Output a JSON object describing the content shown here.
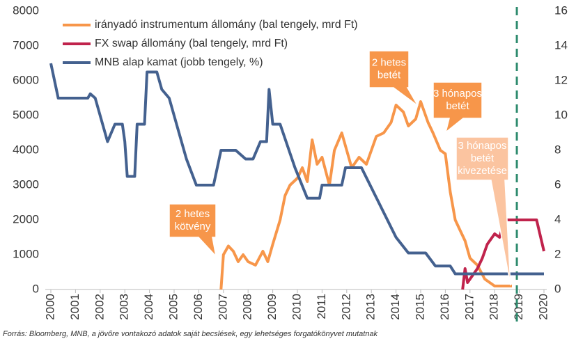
{
  "chart_data": {
    "type": "line",
    "xlim": [
      2000,
      2020
    ],
    "xticks": [
      2000,
      2001,
      2002,
      2003,
      2004,
      2005,
      2006,
      2007,
      2008,
      2009,
      2010,
      2011,
      2012,
      2013,
      2014,
      2015,
      2016,
      2017,
      2018,
      2019,
      2020
    ],
    "ylim": [
      0,
      8000
    ],
    "yticks": [
      0,
      1000,
      2000,
      3000,
      4000,
      5000,
      6000,
      7000,
      8000
    ],
    "y2lim": [
      0,
      16
    ],
    "y2ticks": [
      0,
      2,
      4,
      6,
      8,
      10,
      12,
      14,
      16
    ],
    "legend": "upper left",
    "vline": 2018.9,
    "vline_color": "#2e8b6e",
    "series": [
      {
        "name": "irányadó instrumentum állomány (bal tengely, mrd Ft)",
        "color": "#f7964a",
        "x": [
          2006.9,
          2007.0,
          2007.2,
          2007.4,
          2007.6,
          2007.8,
          2008.0,
          2008.3,
          2008.6,
          2008.8,
          2009.0,
          2009.3,
          2009.5,
          2009.7,
          2010.0,
          2010.2,
          2010.4,
          2010.6,
          2010.8,
          2011.0,
          2011.3,
          2011.5,
          2011.8,
          2012.0,
          2012.2,
          2012.5,
          2012.8,
          2013.0,
          2013.2,
          2013.5,
          2013.8,
          2014.0,
          2014.3,
          2014.5,
          2014.8,
          2015.0,
          2015.3,
          2015.5,
          2015.8,
          2016.0,
          2016.2,
          2016.4,
          2016.6,
          2016.8,
          2017.0,
          2017.3,
          2017.6,
          2018.0,
          2018.7
        ],
        "values": [
          0,
          1000,
          1250,
          1100,
          800,
          1000,
          800,
          700,
          1100,
          800,
          1300,
          2000,
          2700,
          3000,
          3200,
          3500,
          3100,
          4300,
          3600,
          3800,
          3000,
          4000,
          4500,
          4000,
          3500,
          3800,
          3600,
          4000,
          4400,
          4500,
          4800,
          5300,
          5100,
          4700,
          4900,
          5400,
          4800,
          4500,
          4000,
          3900,
          2800,
          2000,
          1700,
          1400,
          900,
          700,
          300,
          100,
          100
        ]
      },
      {
        "name": "FX swap állomány (bal tengely, mrd Ft)",
        "color": "#c0234c",
        "x": [
          2016.7,
          2016.8,
          2016.9,
          2017.3,
          2017.5,
          2017.7,
          2018.0,
          2018.2,
          2018.4,
          2019.7,
          2020.0
        ],
        "values": [
          0,
          600,
          200,
          600,
          900,
          1300,
          1600,
          1500,
          2000,
          2000,
          1100
        ]
      },
      {
        "name": "MNB alap kamat (jobb tengely, %)",
        "color": "#44618f",
        "axis": "y2",
        "x": [
          2000.0,
          2000.3,
          2001.5,
          2001.6,
          2001.8,
          2002.3,
          2002.6,
          2002.9,
          2003.0,
          2003.1,
          2003.4,
          2003.5,
          2003.8,
          2003.9,
          2004.3,
          2004.5,
          2004.8,
          2005.1,
          2005.5,
          2005.9,
          2006.6,
          2006.9,
          2007.5,
          2007.9,
          2008.2,
          2008.5,
          2008.75,
          2008.85,
          2009.0,
          2009.3,
          2009.9,
          2010.4,
          2010.9,
          2011.0,
          2011.8,
          2011.95,
          2012.6,
          2013.3,
          2014.0,
          2014.5,
          2015.2,
          2015.6,
          2016.2,
          2016.4,
          2020.0
        ],
        "values": [
          13,
          11,
          11,
          11.25,
          11,
          8.5,
          9.5,
          9.5,
          8.5,
          6.5,
          6.5,
          9.5,
          9.5,
          12.5,
          12.5,
          11.5,
          11,
          9.5,
          7.5,
          6,
          6,
          8,
          8,
          7.5,
          7.5,
          8.5,
          8.5,
          11.5,
          9.5,
          9.5,
          7,
          5.25,
          5.25,
          6,
          6,
          7,
          7,
          5,
          3,
          2.1,
          2.1,
          1.35,
          1.35,
          0.9,
          0.9
        ]
      }
    ],
    "annotations": [
      {
        "lines": [
          "2 hetes",
          "kötvény"
        ],
        "color": "#f7964a"
      },
      {
        "lines": [
          "2 hetes",
          "betét"
        ],
        "color": "#f7964a"
      },
      {
        "lines": [
          "3 hónapos",
          "betét"
        ],
        "color": "#f7964a"
      },
      {
        "lines": [
          "3 hónapos",
          "betét",
          "kivezetése"
        ],
        "color": "#fbc4a0"
      }
    ],
    "footnote": "Forrás: Bloomberg, MNB, a jövőre vontakozó adatok saját becslések, egy lehetséges forgatókönyvet mutatnak"
  }
}
